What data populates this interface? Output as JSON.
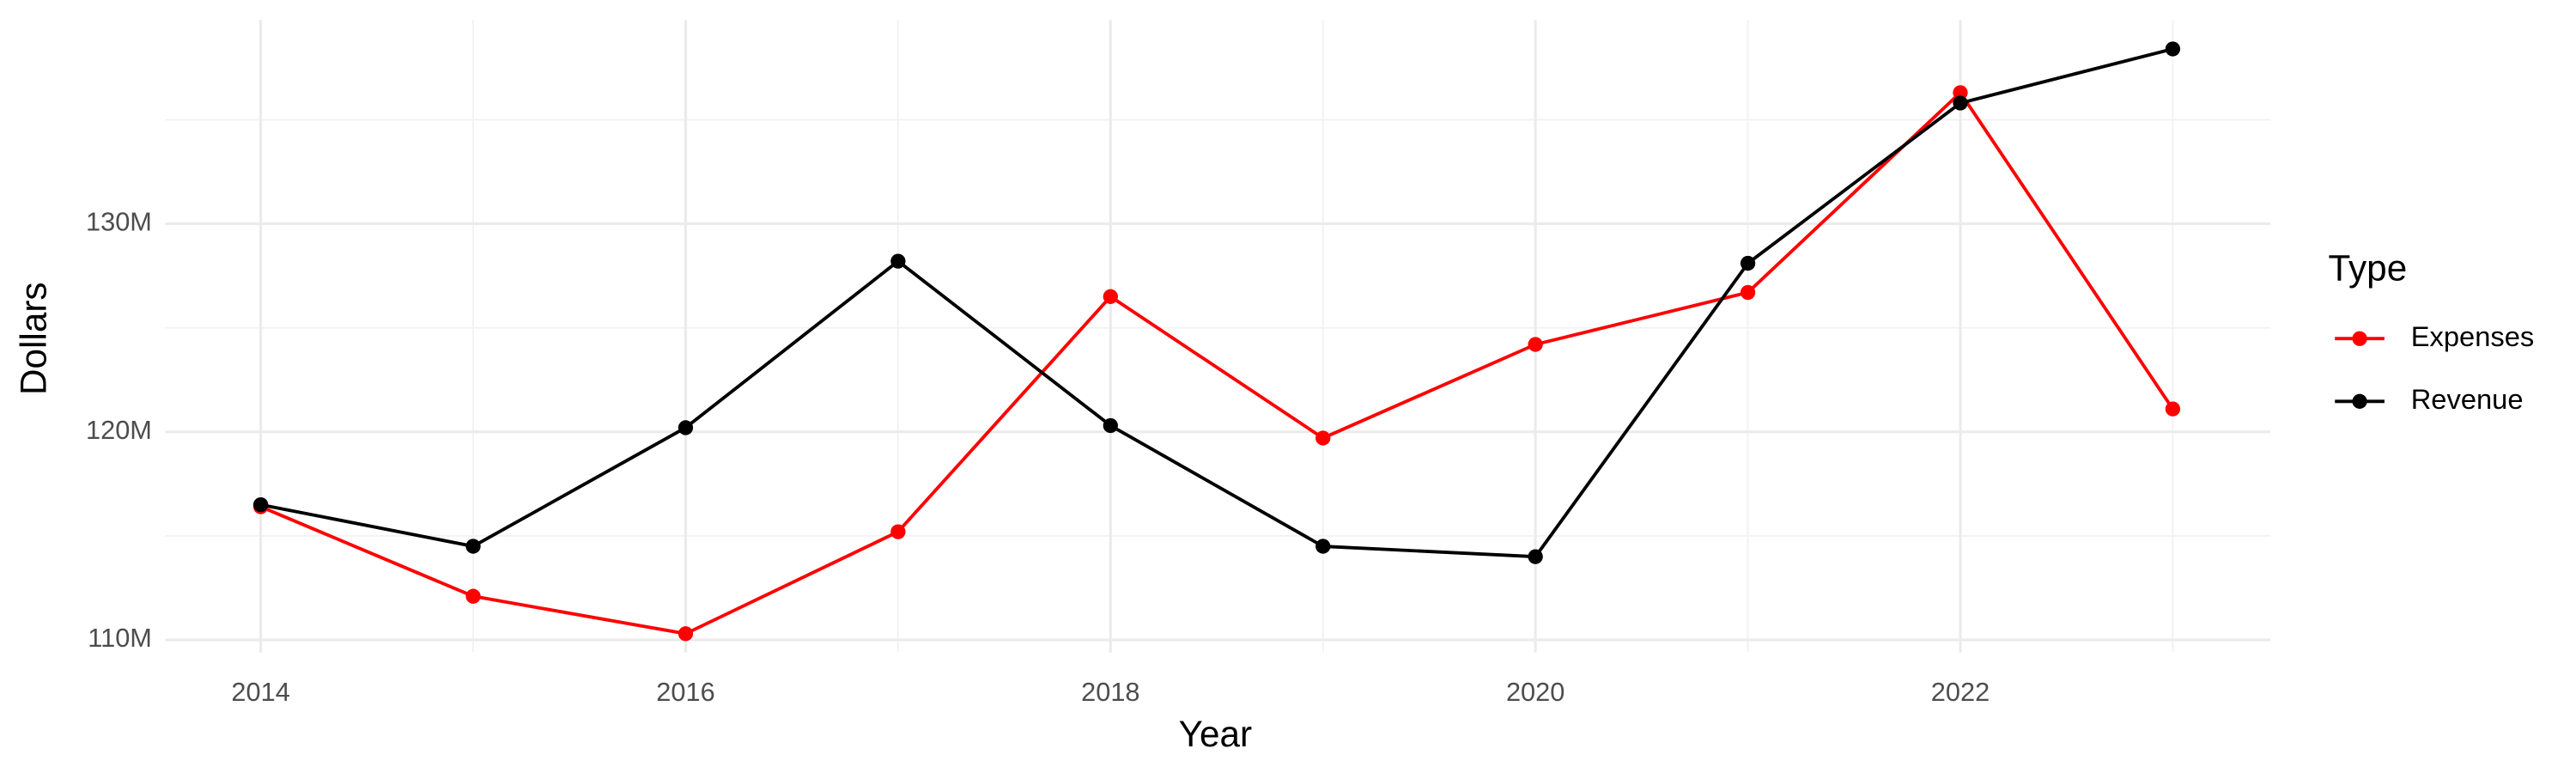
{
  "chart_data": {
    "type": "line",
    "x_label": "Year",
    "y_label": "Dollars",
    "legend_title": "Type",
    "x": [
      2014,
      2015,
      2016,
      2017,
      2018,
      2019,
      2020,
      2021,
      2022,
      2023
    ],
    "series": [
      {
        "name": "Expenses",
        "color": "#ff0000",
        "values": [
          116400000,
          112100000,
          110300000,
          115200000,
          126500000,
          119700000,
          124200000,
          126700000,
          136300000,
          121100000
        ]
      },
      {
        "name": "Revenue",
        "color": "#000000",
        "values": [
          116500000,
          114500000,
          120200000,
          128200000,
          120300000,
          114500000,
          114000000,
          128100000,
          135800000,
          138400000
        ]
      }
    ],
    "xlim": [
      2013.55,
      2023.46
    ],
    "xticks": [
      2014,
      2016,
      2018,
      2020,
      2022
    ],
    "ylim": [
      109400000,
      139800000
    ],
    "yticks": [
      {
        "value": 110000000,
        "label": "110M"
      },
      {
        "value": 120000000,
        "label": "120M"
      },
      {
        "value": 130000000,
        "label": "130M"
      }
    ],
    "grid": true,
    "legend_position": "right"
  }
}
